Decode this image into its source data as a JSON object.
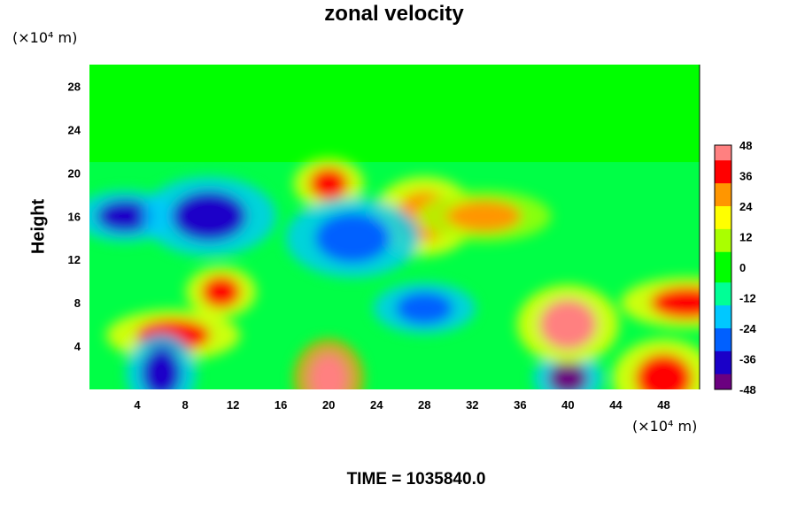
{
  "chart_data": {
    "type": "heatmap",
    "title": "zonal velocity",
    "xlabel": "",
    "ylabel": "Height",
    "x_unit": "(×10⁴ m)",
    "y_unit": "(×10⁴ m)",
    "xlim": [
      0,
      51
    ],
    "ylim": [
      0,
      30
    ],
    "x_ticks": [
      4,
      8,
      12,
      16,
      20,
      24,
      28,
      32,
      36,
      40,
      44,
      48
    ],
    "y_ticks": [
      4,
      8,
      12,
      16,
      20,
      24,
      28
    ],
    "colorbar": {
      "range": [
        -48,
        48
      ],
      "ticks": [
        48,
        36,
        24,
        12,
        0,
        -12,
        -24,
        -36,
        -48
      ],
      "palette": [
        "#6b0080",
        "#1a00c8",
        "#0060ff",
        "#00c8ff",
        "#00ff96",
        "#00ff00",
        "#aaff00",
        "#ffff00",
        "#ff9600",
        "#ff0000",
        "#ff8080"
      ]
    },
    "footer": "TIME = 1035840.0",
    "features": [
      {
        "x": 40,
        "y": 1,
        "value": -48
      },
      {
        "x": 40,
        "y": 6,
        "value": 46
      },
      {
        "x": 7,
        "y": 5,
        "value": 40
      },
      {
        "x": 20,
        "y": 1,
        "value": 50
      },
      {
        "x": 3,
        "y": 16,
        "value": -40
      },
      {
        "x": 10,
        "y": 16,
        "value": -38
      },
      {
        "x": 20,
        "y": 19,
        "value": 34
      },
      {
        "x": 28,
        "y": 16,
        "value": 30
      },
      {
        "x": 33,
        "y": 16,
        "value": 26
      },
      {
        "x": 6,
        "y": 1.5,
        "value": -42
      },
      {
        "x": 28,
        "y": 7.5,
        "value": -30
      },
      {
        "x": 22,
        "y": 14,
        "value": -30
      },
      {
        "x": 11,
        "y": 9,
        "value": 34
      },
      {
        "x": 48,
        "y": 1,
        "value": 40
      },
      {
        "x": 50,
        "y": 8,
        "value": 38
      }
    ]
  }
}
